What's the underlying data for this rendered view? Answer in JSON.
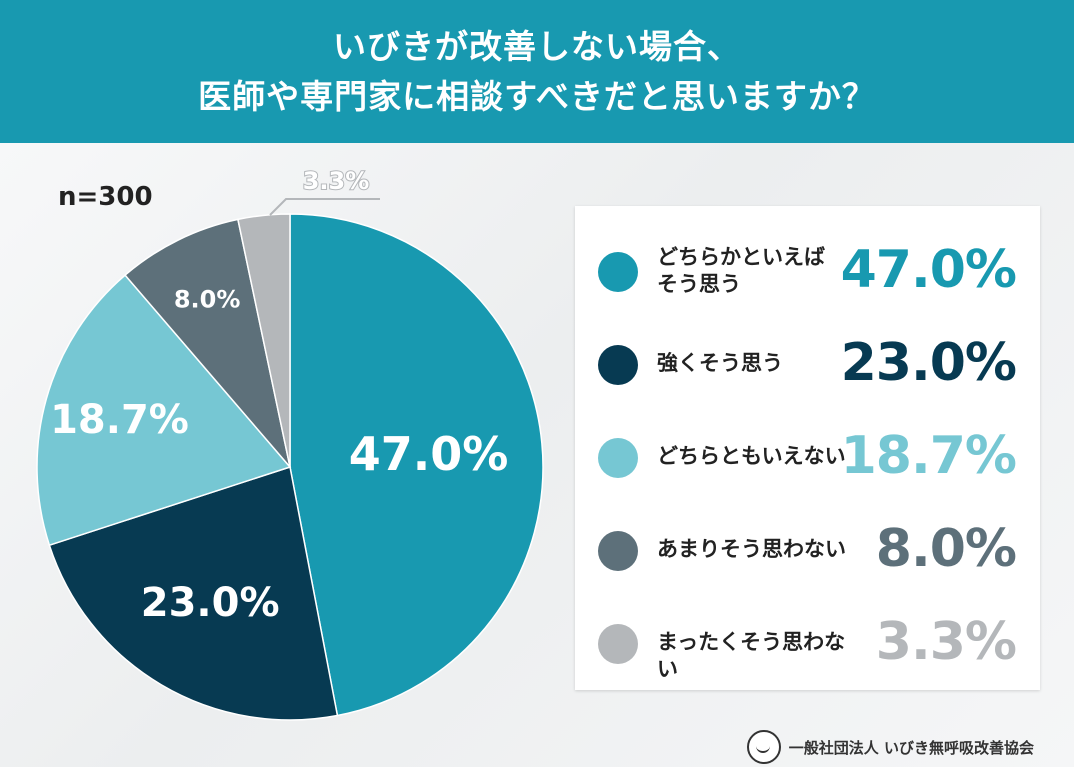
{
  "header": {
    "line1": "いびきが改善しない場合、",
    "line2": "医師や専門家に相談すべきだと思いますか？"
  },
  "sample_label": "n=300",
  "chart_data": {
    "type": "pie",
    "title": "いびきが改善しない場合、医師や専門家に相談すべきだと思いますか？",
    "series": [
      {
        "label": "どちらかといえば\nそう思う",
        "value": 47.0,
        "display": "47.0%",
        "color": "#1899b0"
      },
      {
        "label": "強くそう思う",
        "value": 23.0,
        "display": "23.0%",
        "color": "#073a52"
      },
      {
        "label": "どちらともいえない",
        "value": 18.7,
        "display": "18.7%",
        "color": "#76c7d3"
      },
      {
        "label": "あまりそう思わない",
        "value": 8.0,
        "display": "8.0%",
        "color": "#5d707a"
      },
      {
        "label": "まったくそう思わない",
        "value": 3.3,
        "display": "3.3%",
        "color": "#b4b7ba"
      }
    ],
    "legend_position": "right"
  },
  "legend": {
    "items": [
      {
        "line1": "どちらかといえば",
        "line2": "そう思う",
        "value": "47.0%",
        "color": "#1899b0"
      },
      {
        "line1": "強くそう思う",
        "line2": "",
        "value": "23.0%",
        "color": "#073a52"
      },
      {
        "line1": "どちらともいえない",
        "line2": "",
        "value": "18.7%",
        "color": "#76c7d3"
      },
      {
        "line1": "あまりそう思わない",
        "line2": "",
        "value": "8.0%",
        "color": "#5d707a"
      },
      {
        "line1": "まったくそう思わない",
        "line2": "",
        "value": "3.3%",
        "color": "#b4b7ba"
      }
    ]
  },
  "footer": {
    "org": "一般社団法人 いびき無呼吸改善協会",
    "logo_icon": "sleeping-face-icon"
  }
}
